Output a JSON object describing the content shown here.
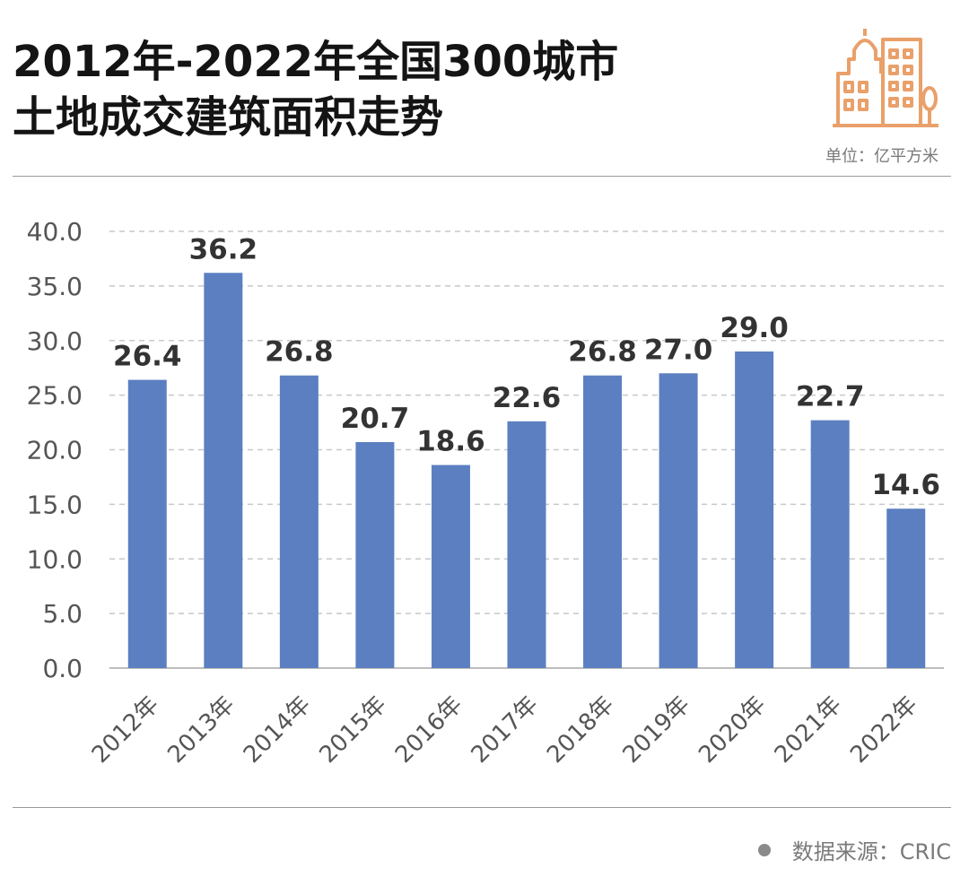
{
  "header": {
    "title_line1": "2012年-2022年全国300城市",
    "title_line2": "土地成交建筑面积走势",
    "unit": "单位：亿平方米",
    "logo_icon": "city-buildings-icon"
  },
  "footer": {
    "source": "数据来源：CRIC"
  },
  "colors": {
    "bar": "#5b7fc1",
    "grid": "#c8c8c8",
    "axis_text": "#555555",
    "label_text": "#333333",
    "logo": "#e9a06a"
  },
  "chart_data": {
    "type": "bar",
    "categories": [
      "2012年",
      "2013年",
      "2014年",
      "2015年",
      "2016年",
      "2017年",
      "2018年",
      "2019年",
      "2020年",
      "2021年",
      "2022年"
    ],
    "values": [
      26.4,
      36.2,
      26.8,
      20.7,
      18.6,
      22.6,
      26.8,
      27.0,
      29.0,
      22.7,
      14.6
    ],
    "value_labels": [
      "26.4",
      "36.2",
      "26.8",
      "20.7",
      "18.6",
      "22.6",
      "26.8",
      "27.0",
      "29.0",
      "22.7",
      "14.6"
    ],
    "ylim": [
      0,
      40
    ],
    "yticks": [
      "0.0",
      "5.0",
      "10.0",
      "15.0",
      "20.0",
      "25.0",
      "30.0",
      "35.0",
      "40.0"
    ],
    "grid": "horizontal-dashed",
    "legend": "none",
    "xlabel": "",
    "ylabel": ""
  }
}
